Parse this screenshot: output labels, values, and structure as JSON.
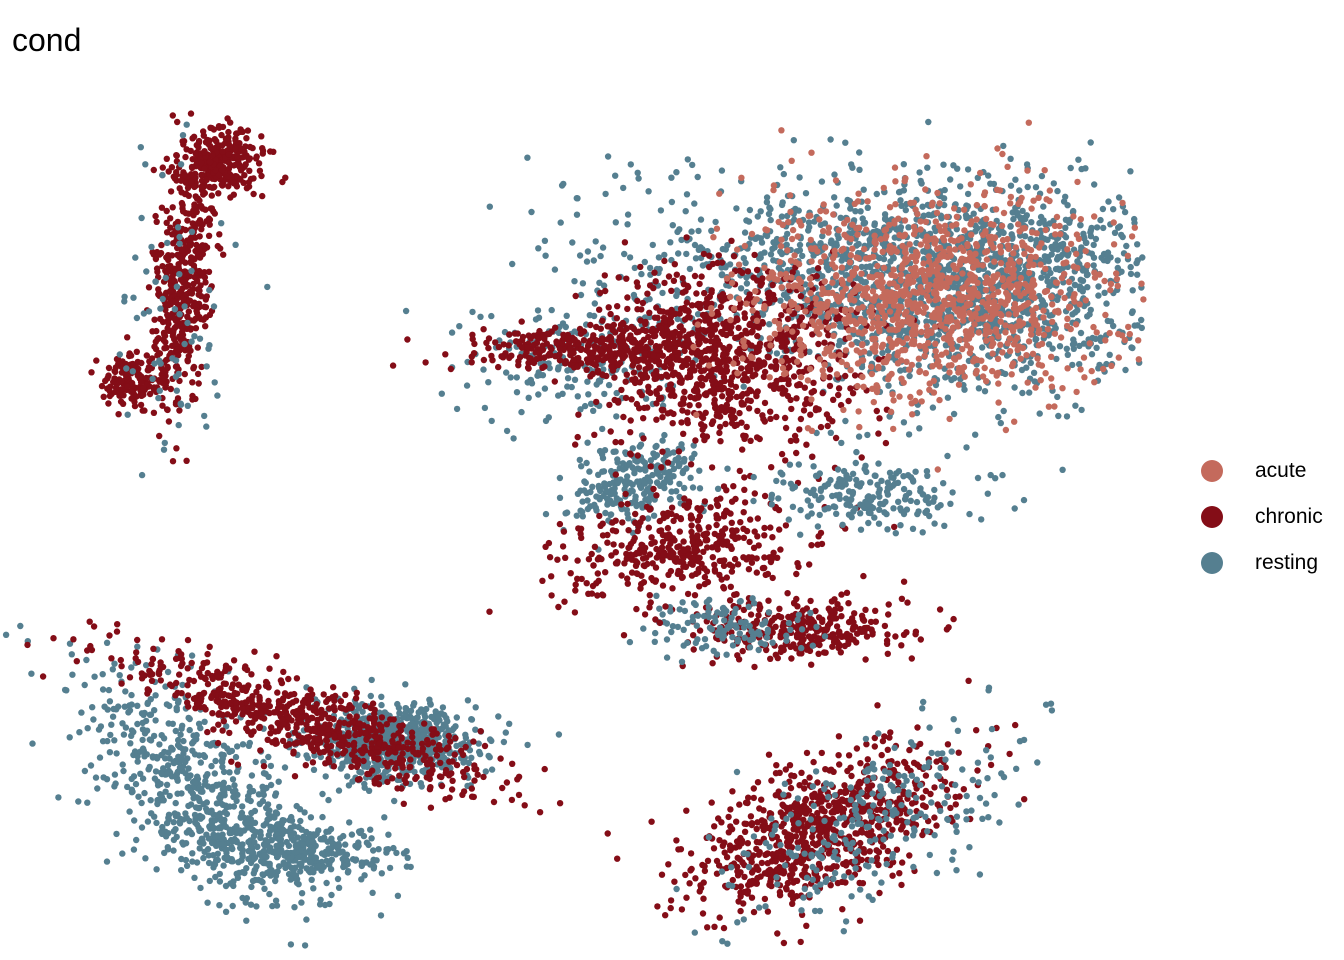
{
  "chart_data": {
    "type": "scatter",
    "title": "cond",
    "xlabel": "",
    "ylabel": "",
    "grid": false,
    "axes_visible": false,
    "legend_position": "right",
    "series": [
      {
        "name": "acute",
        "color": "#C46A5C"
      },
      {
        "name": "chronic",
        "color": "#840D17"
      },
      {
        "name": "resting",
        "color": "#557F90"
      }
    ],
    "clusters": [
      {
        "series": "resting",
        "x": 2.75,
        "y": 2.15,
        "sx": 0.36,
        "sy": 0.14,
        "rho": 0.0,
        "n": 700
      },
      {
        "series": "resting",
        "x": 4.3,
        "y": 5.0,
        "sx": 0.47,
        "sy": 0.22,
        "rho": 0.0,
        "n": 180
      },
      {
        "series": "chronic",
        "x": 0.95,
        "y": 5.6,
        "sx": 0.12,
        "sy": 0.45,
        "rho": 0.25,
        "n": 450
      },
      {
        "series": "chronic",
        "x": 1.3,
        "y": 6.5,
        "sx": 0.18,
        "sy": 0.12,
        "rho": 0.0,
        "n": 280
      },
      {
        "series": "chronic",
        "x": 0.55,
        "y": 4.85,
        "sx": 0.14,
        "sy": 0.1,
        "rho": 0.0,
        "n": 150
      },
      {
        "series": "resting",
        "x": 0.9,
        "y": 5.3,
        "sx": 0.22,
        "sy": 0.55,
        "rho": 0.0,
        "n": 70
      },
      {
        "series": "resting",
        "x": 1.05,
        "y": 1.8,
        "sx": 0.5,
        "sy": 0.45,
        "rho": -0.6,
        "n": 600
      },
      {
        "series": "chronic",
        "x": 2.0,
        "y": 2.3,
        "sx": 0.75,
        "sy": 0.25,
        "rho": -0.82,
        "n": 700
      },
      {
        "series": "resting",
        "x": 1.85,
        "y": 1.35,
        "sx": 0.45,
        "sy": 0.12,
        "rho": -0.3,
        "n": 350
      },
      {
        "series": "chronic",
        "x": 6.4,
        "y": 1.5,
        "sx": 0.55,
        "sy": 0.3,
        "rho": 0.55,
        "n": 800
      },
      {
        "series": "resting",
        "x": 6.8,
        "y": 1.55,
        "sx": 0.6,
        "sy": 0.35,
        "rho": 0.6,
        "n": 260
      },
      {
        "series": "chronic",
        "x": 6.2,
        "y": 3.0,
        "sx": 0.45,
        "sy": 0.12,
        "rho": 0.0,
        "n": 300
      },
      {
        "series": "resting",
        "x": 5.6,
        "y": 3.0,
        "sx": 0.35,
        "sy": 0.1,
        "rho": 0.0,
        "n": 120
      },
      {
        "series": "resting",
        "x": 7.2,
        "y": 5.7,
        "sx": 1.3,
        "sy": 0.35,
        "rho": 0.0,
        "n": 1400
      },
      {
        "series": "resting",
        "x": 7.6,
        "y": 5.4,
        "sx": 0.7,
        "sy": 0.4,
        "rho": 0.0,
        "n": 500
      },
      {
        "series": "resting",
        "x": 4.8,
        "y": 4.1,
        "sx": 0.28,
        "sy": 0.16,
        "rho": 0.4,
        "n": 250
      },
      {
        "series": "chronic",
        "x": 5.5,
        "y": 5.0,
        "sx": 0.55,
        "sy": 0.35,
        "rho": 0.0,
        "n": 900
      },
      {
        "series": "chronic",
        "x": 4.4,
        "y": 5.1,
        "sx": 0.55,
        "sy": 0.08,
        "rho": 0.0,
        "n": 300
      },
      {
        "series": "acute",
        "x": 7.3,
        "y": 5.5,
        "sx": 0.75,
        "sy": 0.4,
        "rho": 0.0,
        "n": 1200
      },
      {
        "series": "chronic",
        "x": 5.2,
        "y": 3.6,
        "sx": 0.5,
        "sy": 0.18,
        "rho": 0.3,
        "n": 400
      },
      {
        "series": "resting",
        "x": 6.8,
        "y": 4.0,
        "sx": 0.45,
        "sy": 0.12,
        "rho": 0.0,
        "n": 200
      }
    ]
  },
  "legend": {
    "items": [
      {
        "label": "acute",
        "color": "#C46A5C"
      },
      {
        "label": "chronic",
        "color": "#840D17"
      },
      {
        "label": "resting",
        "color": "#557F90"
      }
    ]
  }
}
